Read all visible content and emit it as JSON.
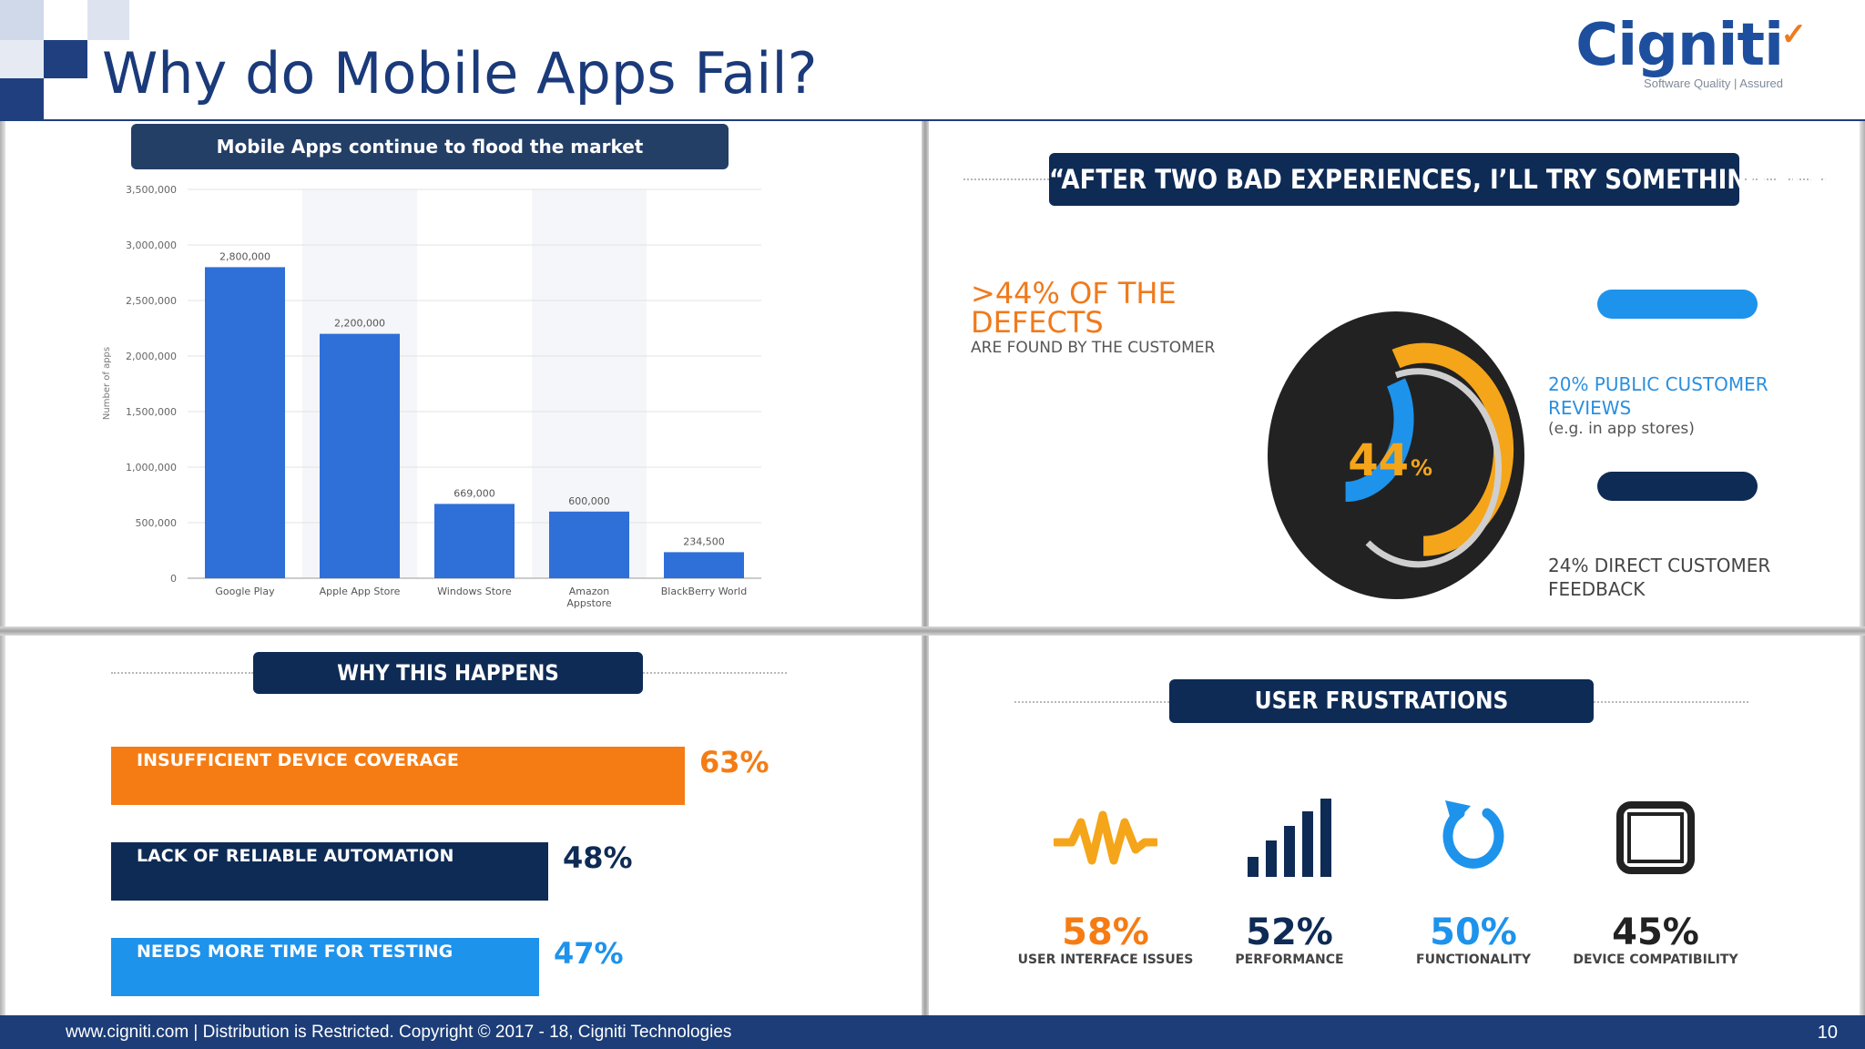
{
  "header": {
    "title": "Why do Mobile Apps Fail?"
  },
  "logo": {
    "name": "Cigniti",
    "tagline": "Software Quality | Assured"
  },
  "chart_panel": {
    "heading": "Mobile Apps continue to flood the market",
    "chart_data": {
      "type": "bar",
      "categories": [
        "Google Play",
        "Apple App Store",
        "Windows Store",
        "Amazon Appstore",
        "BlackBerry World"
      ],
      "values": [
        2800000,
        2200000,
        669000,
        600000,
        234500
      ],
      "value_labels": [
        "2,800,000",
        "2,200,000",
        "669,000",
        "600,000",
        "234,500"
      ],
      "yticks": [
        "0",
        "500,000",
        "1,000,000",
        "1,500,000",
        "2,000,000",
        "2,500,000",
        "3,000,000",
        "3,500,000"
      ],
      "ylim": [
        0,
        3500000
      ],
      "ylabel": "Number of apps",
      "bar_color": "#2f6fd8"
    }
  },
  "donut_panel": {
    "heading": "“AFTER TWO BAD EXPERIENCES, I’LL TRY SOMETHING ELSE”",
    "defects_line1": ">44% OF THE",
    "defects_line2": "DEFECTS",
    "defects_sub": "ARE FOUND BY THE CUSTOMER",
    "center_value": "44",
    "center_unit": "%",
    "legend": [
      {
        "line1": "20% PUBLIC CUSTOMER",
        "line2": "REVIEWS",
        "note": "(e.g. in app stores)",
        "color": "#1e93ec"
      },
      {
        "line1": "24% DIRECT CUSTOMER",
        "line2": "FEEDBACK",
        "color": "#0e2b55"
      }
    ]
  },
  "why_panel": {
    "heading": "WHY THIS HAPPENS",
    "bars": [
      {
        "label": "INSUFFICIENT DEVICE COVERAGE",
        "pct": "63%",
        "value": 63,
        "color": "#f57c14"
      },
      {
        "label": "LACK OF RELIABLE AUTOMATION",
        "pct": "48%",
        "value": 48,
        "color": "#0e2b55"
      },
      {
        "label": "NEEDS MORE TIME FOR TESTING",
        "pct": "47%",
        "value": 47,
        "color": "#1e93ec"
      }
    ]
  },
  "frustrations_panel": {
    "heading": "USER FRUSTRATIONS",
    "items": [
      {
        "pct": "58%",
        "label": "USER INTERFACE ISSUES",
        "icon": "waveform-icon",
        "color": "#f57c14"
      },
      {
        "pct": "52%",
        "label": "PERFORMANCE",
        "icon": "signal-bars-icon",
        "color": "#0e2b55"
      },
      {
        "pct": "50%",
        "label": "FUNCTIONALITY",
        "icon": "refresh-icon",
        "color": "#1e93ec"
      },
      {
        "pct": "45%",
        "label": "DEVICE COMPATIBILITY",
        "icon": "tablet-icon",
        "color": "#222222"
      }
    ]
  },
  "footer": {
    "text": "www.cigniti.com  |  Distribution is Restricted. Copyright © 2017 - 18, Cigniti Technologies",
    "page": "10"
  }
}
